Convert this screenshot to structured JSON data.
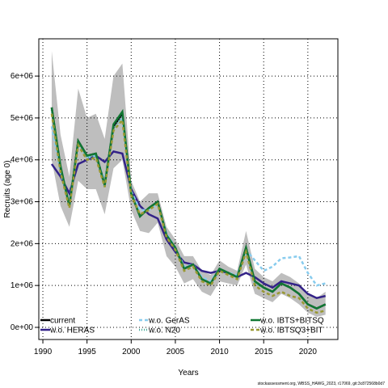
{
  "chart_data": {
    "type": "line",
    "ylabel": "Recruits (age 0)",
    "xlabel": "Years",
    "footer": "stockassessment.org, WBSS_HAWG_2023, r17069, git:3c872568b0d7",
    "x": [
      1991,
      1992,
      1993,
      1994,
      1995,
      1996,
      1997,
      1998,
      1999,
      2000,
      2001,
      2002,
      2003,
      2004,
      2005,
      2006,
      2007,
      2008,
      2009,
      2010,
      2011,
      2012,
      2013,
      2014,
      2015,
      2016,
      2017,
      2018,
      2019,
      2020,
      2021,
      2022
    ],
    "xlim": [
      1989.54,
      2023.4
    ],
    "xticks": [
      1990,
      1995,
      2000,
      2005,
      2010,
      2015,
      2020
    ],
    "ylim": [
      -290000,
      6890000
    ],
    "yticks": [
      {
        "value": 0,
        "label": "0e+00"
      },
      {
        "value": 1000000,
        "label": "1e+06"
      },
      {
        "value": 2000000,
        "label": "2e+06"
      },
      {
        "value": 3000000,
        "label": "3e+06"
      },
      {
        "value": 4000000,
        "label": "4e+06"
      },
      {
        "value": 5000000,
        "label": "5e+06"
      },
      {
        "value": 6000000,
        "label": "6e+06"
      }
    ],
    "grid": true,
    "band": {
      "color": "#bebebe",
      "upper": [
        6600000,
        4600000,
        3600000,
        5700000,
        5000000,
        5100000,
        4500000,
        6000000,
        6300000,
        3500000,
        3000000,
        3200000,
        3200000,
        2400000,
        2100000,
        1700000,
        1700000,
        1350000,
        1250000,
        1600000,
        1450000,
        1350000,
        2300000,
        1400000,
        1200000,
        1100000,
        1300000,
        1200000,
        1050000,
        800000,
        700000,
        850000
      ],
      "lower": [
        4000000,
        2900000,
        2400000,
        3500000,
        3300000,
        3300000,
        2700000,
        3800000,
        4000000,
        2800000,
        2300000,
        2250000,
        2500000,
        1700000,
        1450000,
        1050000,
        1150000,
        850000,
        750000,
        1100000,
        1050000,
        1000000,
        1500000,
        800000,
        700000,
        600000,
        800000,
        700000,
        550000,
        350000,
        250000,
        300000
      ]
    },
    "series": [
      {
        "name": "current",
        "color": "#000000",
        "dash": "none",
        "values": [
          5250000,
          3800000,
          2900000,
          4450000,
          4100000,
          4150000,
          3400000,
          4800000,
          5100000,
          3200000,
          2650000,
          2850000,
          3000000,
          2200000,
          1900000,
          1400000,
          1500000,
          1150000,
          1050000,
          1400000,
          1300000,
          1200000,
          1900000,
          1100000,
          950000,
          850000,
          1050000,
          950000,
          800000,
          550000,
          450000,
          550000
        ]
      },
      {
        "name": "w.o. HERAS",
        "color": "#332288",
        "dash": "none",
        "values": [
          3900000,
          3600000,
          3200000,
          3900000,
          4000000,
          4100000,
          3950000,
          4200000,
          4150000,
          3300000,
          2900000,
          2700000,
          2600000,
          2100000,
          1800000,
          1550000,
          1500000,
          1350000,
          1300000,
          1350000,
          1300000,
          1200000,
          1300000,
          1200000,
          1050000,
          950000,
          1100000,
          1050000,
          1000000,
          800000,
          700000,
          750000
        ]
      },
      {
        "name": "w.o. GerAS",
        "color": "#88ccee",
        "dash": "4,3",
        "values": [
          4800000,
          3700000,
          2950000,
          4400000,
          4050000,
          4100000,
          3500000,
          4700000,
          5000000,
          3250000,
          2800000,
          2800000,
          2950000,
          2250000,
          1900000,
          1450000,
          1500000,
          1200000,
          1100000,
          1400000,
          1300000,
          1250000,
          1850000,
          1600000,
          1350000,
          1450000,
          1650000,
          1670000,
          1700000,
          1300000,
          1000000,
          1050000
        ]
      },
      {
        "name": "w.o. N20",
        "color": "#44aa99",
        "dash": "1,2",
        "values": [
          5200000,
          3750000,
          2900000,
          4400000,
          4050000,
          4100000,
          3350000,
          4750000,
          5050000,
          3200000,
          2650000,
          2850000,
          3000000,
          2200000,
          1900000,
          1400000,
          1500000,
          1150000,
          1050000,
          1400000,
          1300000,
          1200000,
          1850000,
          1050000,
          950000,
          850000,
          1050000,
          950000,
          800000,
          550000,
          450000,
          550000
        ]
      },
      {
        "name": "w.o. IBTS+BITSQ",
        "color": "#117733",
        "dash": "none",
        "values": [
          5250000,
          3850000,
          2900000,
          4450000,
          4100000,
          4150000,
          3400000,
          4850000,
          5150000,
          3200000,
          2650000,
          2850000,
          3000000,
          2200000,
          1900000,
          1400000,
          1500000,
          1150000,
          1050000,
          1400000,
          1300000,
          1200000,
          1900000,
          1100000,
          950000,
          850000,
          1050000,
          950000,
          800000,
          550000,
          450000,
          550000
        ]
      },
      {
        "name": "w.o. IBTSQ3+BIT",
        "color": "#999933",
        "dash": "4,3",
        "values": [
          5100000,
          3700000,
          2850000,
          4350000,
          4000000,
          4050000,
          3350000,
          4700000,
          4950000,
          3150000,
          2700000,
          2800000,
          2950000,
          2150000,
          1850000,
          1350000,
          1450000,
          1100000,
          1000000,
          1350000,
          1250000,
          1150000,
          1800000,
          1000000,
          850000,
          750000,
          850000,
          750000,
          700000,
          450000,
          350000,
          400000
        ]
      }
    ]
  }
}
